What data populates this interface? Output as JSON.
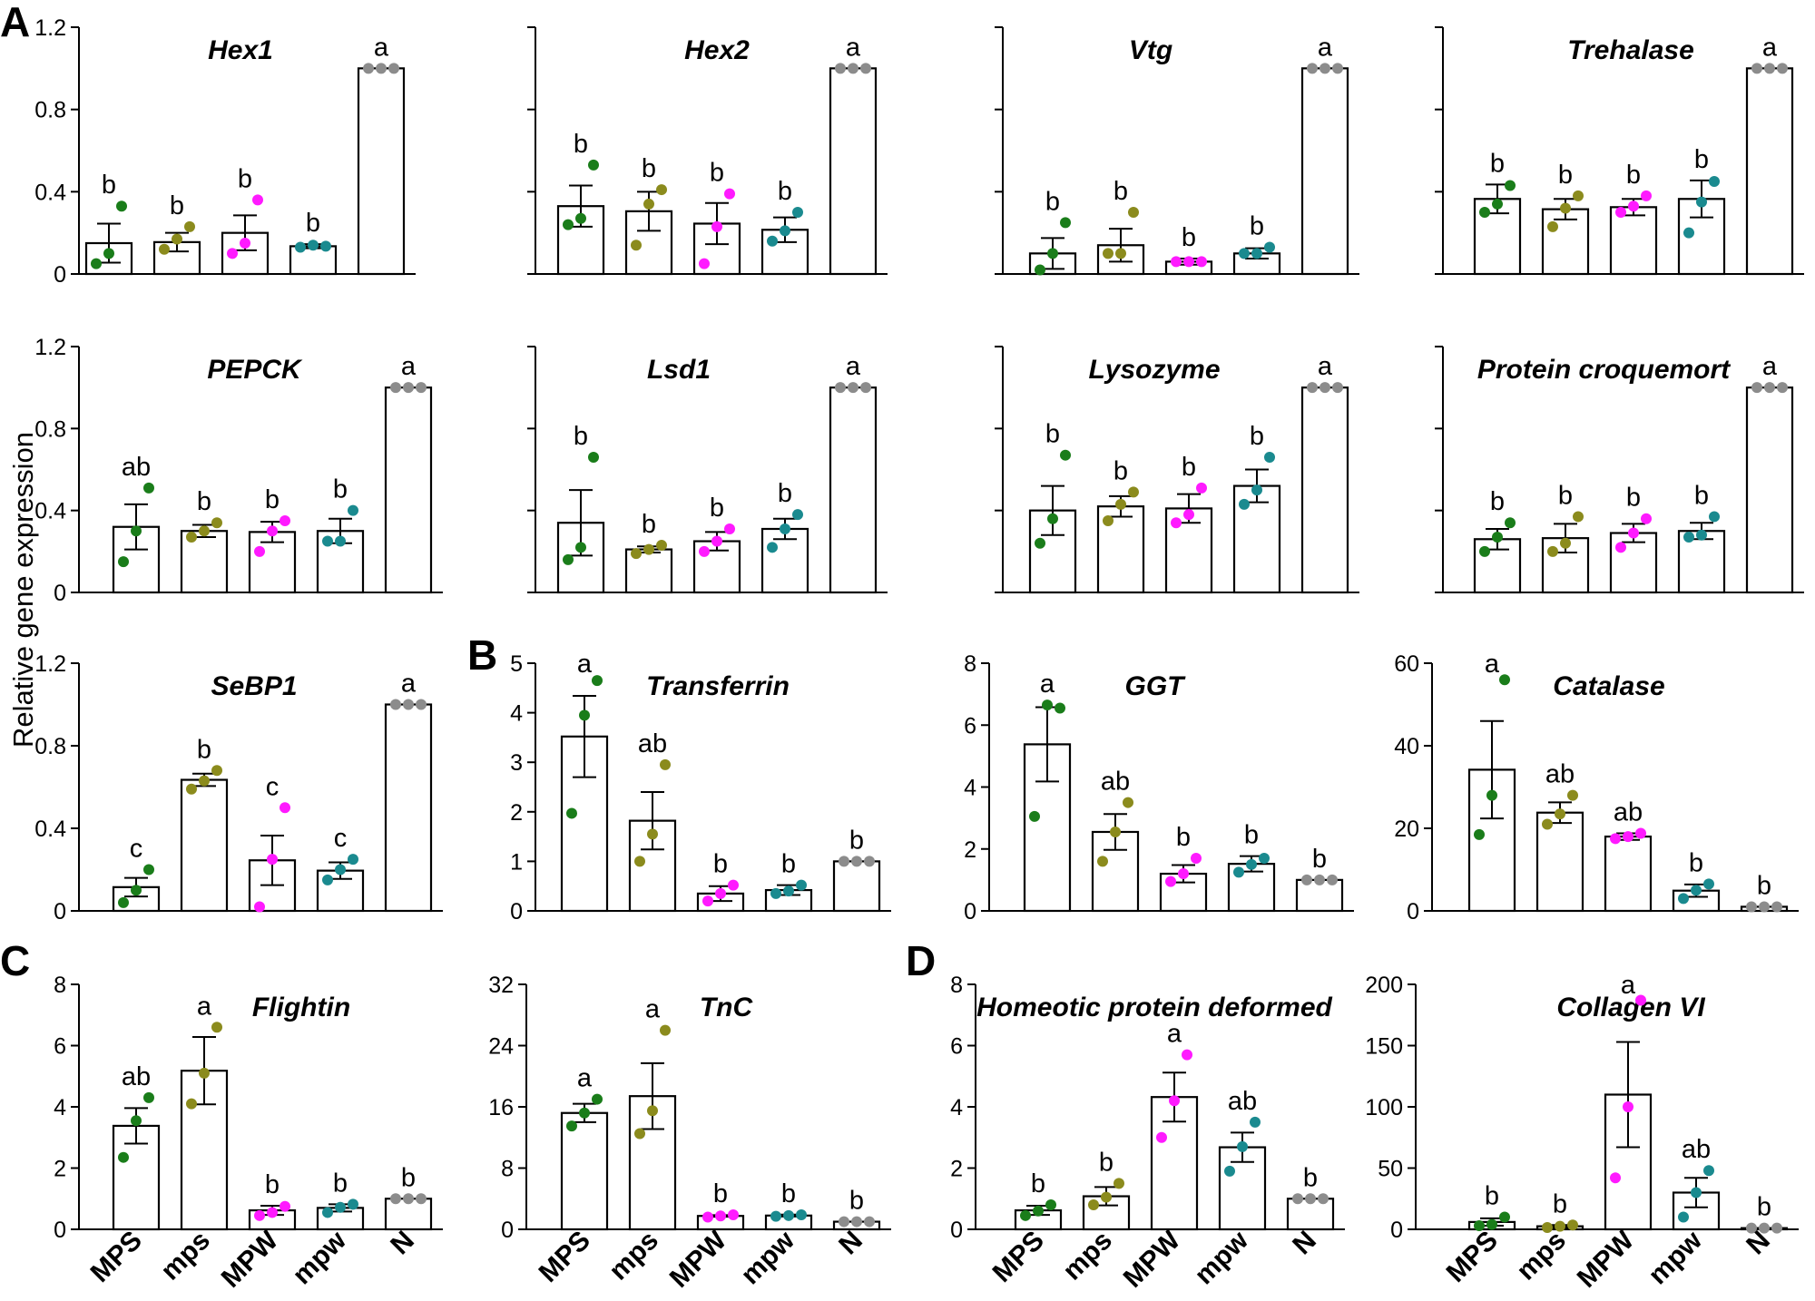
{
  "colors": {
    "MPS": "#1a7d1a",
    "mps": "#8b8b1d",
    "MPW": "#ff1aff",
    "mpw": "#1a8a8f",
    "N": "#8c8c8c"
  },
  "categories": [
    "MPS",
    "mps",
    "MPW",
    "mpw",
    "N"
  ],
  "y_axis_label": "Relative gene expression",
  "panel_labels": [
    "A",
    "B",
    "C",
    "D"
  ],
  "chart_data": [
    {
      "type": "bar",
      "title": "Hex1",
      "ylim": [
        0,
        1.2
      ],
      "yticks": [
        "0",
        "0.4",
        "0.8",
        "1.2"
      ],
      "show_tick_labels": true,
      "values": [
        0.15,
        0.155,
        0.2,
        0.135,
        1.0
      ],
      "errors": [
        0.095,
        0.045,
        0.085,
        0.01,
        0.0
      ],
      "points": [
        [
          0.05,
          0.1,
          0.33
        ],
        [
          0.12,
          0.17,
          0.23
        ],
        [
          0.1,
          0.15,
          0.36
        ],
        [
          0.13,
          0.14,
          0.135
        ],
        [
          1.0,
          1.0,
          1.0
        ]
      ],
      "letters": [
        "b",
        "b",
        "b",
        "b",
        "a"
      ]
    },
    {
      "type": "bar",
      "title": "Hex2",
      "ylim": [
        0,
        1.2
      ],
      "yticks": [
        "0",
        "0.4",
        "0.8",
        "1.2"
      ],
      "show_tick_labels": false,
      "values": [
        0.33,
        0.305,
        0.245,
        0.215,
        1.0
      ],
      "errors": [
        0.1,
        0.095,
        0.1,
        0.06,
        0.0
      ],
      "points": [
        [
          0.24,
          0.27,
          0.53
        ],
        [
          0.14,
          0.34,
          0.41
        ],
        [
          0.05,
          0.23,
          0.39
        ],
        [
          0.16,
          0.21,
          0.3
        ],
        [
          1.0,
          1.0,
          1.0
        ]
      ],
      "letters": [
        "b",
        "b",
        "b",
        "b",
        "a"
      ]
    },
    {
      "type": "bar",
      "title": "Vtg",
      "ylim": [
        0,
        1.2
      ],
      "yticks": [
        "0",
        "0.4",
        "0.8",
        "1.2"
      ],
      "show_tick_labels": false,
      "values": [
        0.1,
        0.14,
        0.06,
        0.1,
        1.0
      ],
      "errors": [
        0.075,
        0.08,
        0.015,
        0.025,
        0.0
      ],
      "points": [
        [
          0.02,
          0.1,
          0.25
        ],
        [
          0.1,
          0.1,
          0.3
        ],
        [
          0.06,
          0.06,
          0.06
        ],
        [
          0.1,
          0.1,
          0.13
        ],
        [
          1.0,
          1.0,
          1.0
        ]
      ],
      "letters": [
        "b",
        "b",
        "b",
        "b",
        "a"
      ]
    },
    {
      "type": "bar",
      "title": "Trehalase",
      "ylim": [
        0,
        1.2
      ],
      "yticks": [
        "0",
        "0.4",
        "0.8",
        "1.2"
      ],
      "show_tick_labels": false,
      "values": [
        0.365,
        0.315,
        0.325,
        0.365,
        1.0
      ],
      "errors": [
        0.07,
        0.05,
        0.04,
        0.09,
        0.0
      ],
      "points": [
        [
          0.3,
          0.34,
          0.43
        ],
        [
          0.23,
          0.32,
          0.38
        ],
        [
          0.3,
          0.33,
          0.38
        ],
        [
          0.2,
          0.35,
          0.45
        ],
        [
          1.0,
          1.0,
          1.0
        ]
      ],
      "letters": [
        "b",
        "b",
        "b",
        "b",
        "a"
      ]
    },
    {
      "type": "bar",
      "title": "PEPCK",
      "ylim": [
        0,
        1.2
      ],
      "yticks": [
        "0",
        "0.4",
        "0.8",
        "1.2"
      ],
      "show_tick_labels": true,
      "values": [
        0.32,
        0.3,
        0.295,
        0.3,
        1.0
      ],
      "errors": [
        0.11,
        0.03,
        0.05,
        0.06,
        0.0
      ],
      "points": [
        [
          0.15,
          0.3,
          0.51
        ],
        [
          0.27,
          0.3,
          0.34
        ],
        [
          0.2,
          0.3,
          0.35
        ],
        [
          0.25,
          0.25,
          0.4
        ],
        [
          1.0,
          1.0,
          1.0
        ]
      ],
      "letters": [
        "ab",
        "b",
        "b",
        "b",
        "a"
      ]
    },
    {
      "type": "bar",
      "title": "Lsd1",
      "ylim": [
        0,
        1.2
      ],
      "yticks": [
        "0",
        "0.4",
        "0.8",
        "1.2"
      ],
      "show_tick_labels": false,
      "values": [
        0.34,
        0.21,
        0.25,
        0.31,
        1.0
      ],
      "errors": [
        0.16,
        0.015,
        0.045,
        0.05,
        0.0
      ],
      "points": [
        [
          0.16,
          0.22,
          0.66
        ],
        [
          0.19,
          0.21,
          0.23
        ],
        [
          0.2,
          0.25,
          0.31
        ],
        [
          0.22,
          0.31,
          0.38
        ],
        [
          1.0,
          1.0,
          1.0
        ]
      ],
      "letters": [
        "b",
        "b",
        "b",
        "b",
        "a"
      ]
    },
    {
      "type": "bar",
      "title": "Lysozyme",
      "ylim": [
        0,
        1.2
      ],
      "yticks": [
        "0",
        "0.4",
        "0.8",
        "1.2"
      ],
      "show_tick_labels": false,
      "values": [
        0.4,
        0.42,
        0.41,
        0.52,
        1.0
      ],
      "errors": [
        0.12,
        0.05,
        0.07,
        0.08,
        0.0
      ],
      "points": [
        [
          0.24,
          0.36,
          0.67
        ],
        [
          0.35,
          0.43,
          0.49
        ],
        [
          0.34,
          0.38,
          0.51
        ],
        [
          0.43,
          0.5,
          0.66
        ],
        [
          1.0,
          1.0,
          1.0
        ]
      ],
      "letters": [
        "b",
        "b",
        "b",
        "b",
        "a"
      ]
    },
    {
      "type": "bar",
      "title": "Protein croquemort",
      "ylim": [
        0,
        1.2
      ],
      "yticks": [
        "0",
        "0.4",
        "0.8",
        "1.2"
      ],
      "show_tick_labels": false,
      "values": [
        0.26,
        0.265,
        0.29,
        0.3,
        1.0
      ],
      "errors": [
        0.05,
        0.07,
        0.045,
        0.04,
        0.0
      ],
      "points": [
        [
          0.2,
          0.27,
          0.34
        ],
        [
          0.2,
          0.24,
          0.37
        ],
        [
          0.22,
          0.29,
          0.36
        ],
        [
          0.27,
          0.28,
          0.37
        ],
        [
          1.0,
          1.0,
          1.0
        ]
      ],
      "letters": [
        "b",
        "b",
        "b",
        "b",
        "a"
      ]
    },
    {
      "type": "bar",
      "title": "SeBP1",
      "ylim": [
        0,
        1.2
      ],
      "yticks": [
        "0",
        "0.4",
        "0.8",
        "1.2"
      ],
      "show_tick_labels": true,
      "values": [
        0.115,
        0.635,
        0.245,
        0.195,
        1.0
      ],
      "errors": [
        0.045,
        0.03,
        0.12,
        0.04,
        0.0
      ],
      "points": [
        [
          0.04,
          0.1,
          0.2
        ],
        [
          0.59,
          0.63,
          0.68
        ],
        [
          0.02,
          0.25,
          0.5
        ],
        [
          0.15,
          0.2,
          0.25
        ],
        [
          1.0,
          1.0,
          1.0
        ]
      ],
      "letters": [
        "c",
        "b",
        "c",
        "c",
        "a"
      ]
    },
    {
      "type": "bar",
      "title": "Transferrin",
      "ylim": [
        0,
        5
      ],
      "yticks": [
        "0",
        "1",
        "2",
        "3",
        "4",
        "5"
      ],
      "show_tick_labels": true,
      "values": [
        3.52,
        1.82,
        0.35,
        0.42,
        1.0
      ],
      "errors": [
        0.82,
        0.58,
        0.15,
        0.1,
        0.0
      ],
      "points": [
        [
          1.97,
          3.95,
          4.65
        ],
        [
          1.0,
          1.55,
          2.95
        ],
        [
          0.2,
          0.35,
          0.52
        ],
        [
          0.35,
          0.4,
          0.52
        ],
        [
          1.0,
          1.0,
          1.0
        ]
      ],
      "letters": [
        "a",
        "ab",
        "b",
        "b",
        "b"
      ]
    },
    {
      "type": "bar",
      "title": "GGT",
      "ylim": [
        0,
        8
      ],
      "yticks": [
        "0",
        "2",
        "4",
        "6",
        "8"
      ],
      "show_tick_labels": true,
      "values": [
        5.38,
        2.55,
        1.2,
        1.52,
        1.0
      ],
      "errors": [
        1.2,
        0.58,
        0.28,
        0.25,
        0.0
      ],
      "points": [
        [
          3.05,
          6.65,
          6.55
        ],
        [
          1.6,
          2.55,
          3.5
        ],
        [
          0.95,
          1.2,
          1.7
        ],
        [
          1.25,
          1.5,
          1.7
        ],
        [
          1.0,
          1.0,
          1.0
        ]
      ],
      "letters": [
        "a",
        "ab",
        "b",
        "b",
        "b"
      ]
    },
    {
      "type": "bar",
      "title": "Catalase",
      "ylim": [
        0,
        60
      ],
      "yticks": [
        "0",
        "20",
        "40",
        "60"
      ],
      "show_tick_labels": true,
      "values": [
        34.2,
        23.8,
        18.0,
        4.9,
        1.0
      ],
      "errors": [
        11.8,
        2.5,
        0.8,
        1.5,
        0.0
      ],
      "points": [
        [
          18.5,
          28.0,
          56.0
        ],
        [
          21.0,
          23.5,
          28.0
        ],
        [
          17.5,
          18.0,
          18.8
        ],
        [
          3.0,
          5.0,
          6.5
        ],
        [
          1.0,
          1.0,
          1.0
        ]
      ],
      "letters": [
        "a",
        "ab",
        "ab",
        "b",
        "b"
      ]
    },
    {
      "type": "bar",
      "title": "Flightin",
      "ylim": [
        0,
        8
      ],
      "yticks": [
        "0",
        "2",
        "4",
        "6",
        "8"
      ],
      "show_tick_labels": true,
      "values": [
        3.38,
        5.18,
        0.62,
        0.7,
        1.0
      ],
      "errors": [
        0.58,
        1.1,
        0.15,
        0.12,
        0.0
      ],
      "points": [
        [
          2.35,
          3.55,
          4.3
        ],
        [
          4.1,
          5.1,
          6.6
        ],
        [
          0.45,
          0.55,
          0.75
        ],
        [
          0.55,
          0.72,
          0.82
        ],
        [
          1.0,
          1.0,
          1.0
        ]
      ],
      "letters": [
        "ab",
        "a",
        "b",
        "b",
        "b"
      ]
    },
    {
      "type": "bar",
      "title": "TnC",
      "ylim": [
        0,
        32
      ],
      "yticks": [
        "0",
        "8",
        "16",
        "24",
        "32"
      ],
      "show_tick_labels": true,
      "values": [
        15.2,
        17.4,
        1.75,
        1.8,
        1.0
      ],
      "errors": [
        1.2,
        4.3,
        0.1,
        0.12,
        0.0
      ],
      "points": [
        [
          13.5,
          15.2,
          17.0
        ],
        [
          12.5,
          15.5,
          26.0
        ],
        [
          1.6,
          1.75,
          1.9
        ],
        [
          1.7,
          1.8,
          1.9
        ],
        [
          1.0,
          1.0,
          1.0
        ]
      ],
      "letters": [
        "a",
        "a",
        "b",
        "b",
        "b"
      ]
    },
    {
      "type": "bar",
      "title": "Homeotic protein deformed",
      "ylim": [
        0,
        8
      ],
      "yticks": [
        "0",
        "2",
        "4",
        "6",
        "8"
      ],
      "show_tick_labels": true,
      "values": [
        0.62,
        1.08,
        4.32,
        2.68,
        1.0
      ],
      "errors": [
        0.15,
        0.3,
        0.8,
        0.48,
        0.0
      ],
      "points": [
        [
          0.45,
          0.6,
          0.8
        ],
        [
          0.8,
          1.05,
          1.5
        ],
        [
          3.0,
          4.2,
          5.7
        ],
        [
          1.9,
          2.7,
          3.5
        ],
        [
          1.0,
          1.0,
          1.0
        ]
      ],
      "letters": [
        "b",
        "b",
        "a",
        "ab",
        "b"
      ]
    },
    {
      "type": "bar",
      "title": "Collagen VI",
      "ylim": [
        0,
        200
      ],
      "yticks": [
        "0",
        "50",
        "100",
        "150",
        "200"
      ],
      "show_tick_labels": true,
      "values": [
        6.0,
        2.5,
        110.0,
        30.0,
        1.0
      ],
      "errors": [
        3.0,
        1.0,
        43.0,
        12.0,
        0.0
      ],
      "points": [
        [
          3.0,
          4.0,
          10.0
        ],
        [
          1.5,
          2.5,
          3.5
        ],
        [
          42.0,
          100.0,
          187.0
        ],
        [
          10.0,
          30.0,
          48.0
        ],
        [
          1.0,
          1.0,
          1.0
        ]
      ],
      "letters": [
        "b",
        "b",
        "a",
        "ab",
        "b"
      ]
    }
  ]
}
